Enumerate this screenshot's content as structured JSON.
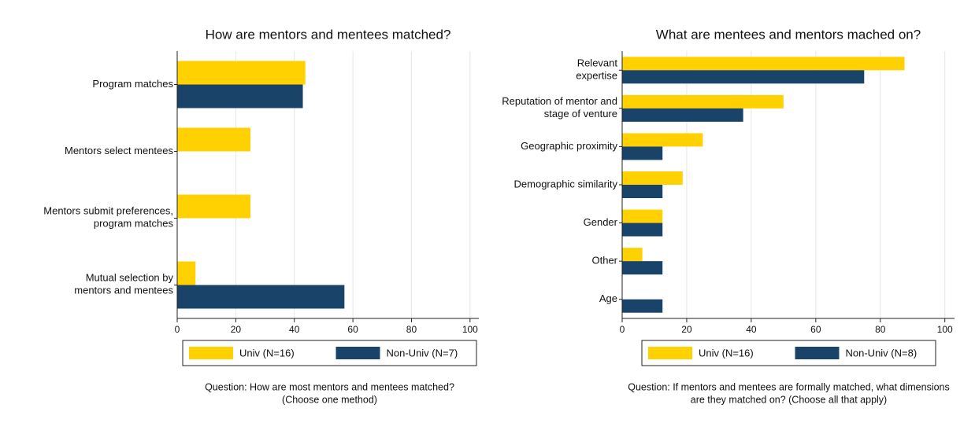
{
  "chart_data": [
    {
      "type": "barh",
      "title": "How are mentors and mentees matched?",
      "categories": [
        "Program matches",
        "Mentors select mentees",
        [
          "Mentors submit preferences,",
          "program matches"
        ],
        [
          "Mutual selection by",
          "mentors and mentees"
        ]
      ],
      "series": [
        {
          "name": "Univ (N=16)",
          "color": "#ffd100",
          "values": [
            43.75,
            25,
            25,
            6.25
          ]
        },
        {
          "name": "Non-Univ (N=7)",
          "color": "#1a4369",
          "values": [
            42.9,
            0,
            0,
            57.1
          ]
        }
      ],
      "xlim": [
        0,
        103
      ],
      "xticks": [
        0,
        20,
        40,
        60,
        80,
        100
      ],
      "grid": true,
      "note": [
        "Question: How are most mentors and mentees matched?",
        "(Choose one method)"
      ]
    },
    {
      "type": "barh",
      "title": "What are mentees and mentors mached on?",
      "categories": [
        [
          "Relevant",
          "expertise"
        ],
        [
          "Reputation of mentor and",
          "stage of venture"
        ],
        "Geographic proximity",
        "Demographic similarity",
        "Gender",
        "Other",
        "Age"
      ],
      "series": [
        {
          "name": "Univ (N=16)",
          "color": "#ffd100",
          "values": [
            87.5,
            50,
            25,
            18.75,
            12.5,
            6.25,
            0
          ]
        },
        {
          "name": "Non-Univ (N=8)",
          "color": "#1a4369",
          "values": [
            75,
            37.5,
            12.5,
            12.5,
            12.5,
            12.5,
            12.5
          ]
        }
      ],
      "xlim": [
        0,
        103
      ],
      "xticks": [
        0,
        20,
        40,
        60,
        80,
        100
      ],
      "grid": true,
      "note": [
        "Question: If mentors and mentees are formally matched, what dimensions",
        "are they matched on? (Choose all that apply)"
      ]
    }
  ]
}
